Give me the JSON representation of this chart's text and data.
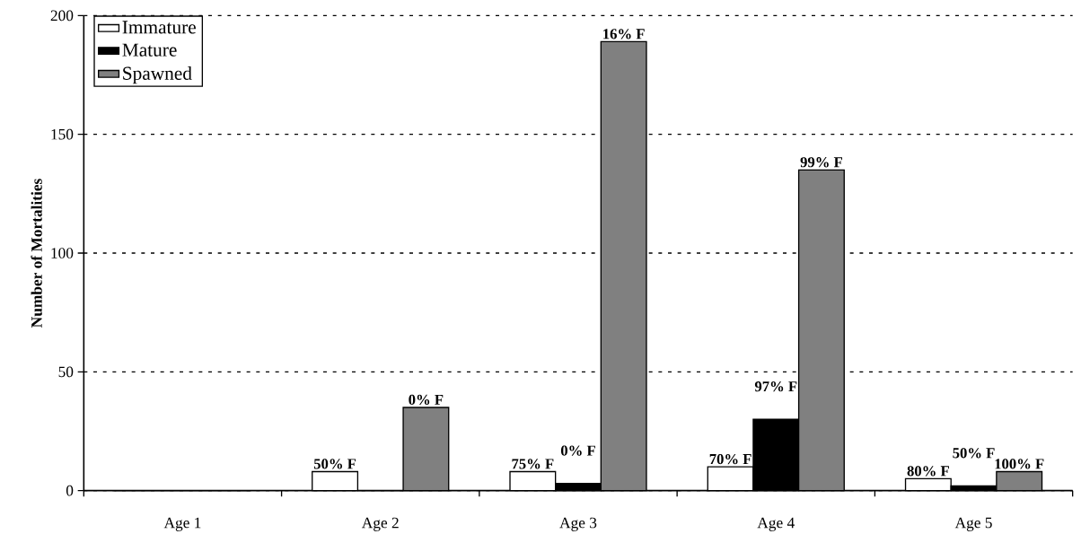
{
  "chart_data": {
    "type": "bar",
    "ylabel": "Number of Mortalities",
    "categories": [
      "Age 1",
      "Age 2",
      "Age 3",
      "Age 4",
      "Age 5"
    ],
    "series": [
      {
        "name": "Immature",
        "color": "#ffffff",
        "values": [
          0,
          8,
          8,
          10,
          5
        ]
      },
      {
        "name": "Mature",
        "color": "#000000",
        "values": [
          0,
          0,
          3,
          30,
          2
        ]
      },
      {
        "name": "Spawned",
        "color": "#808080",
        "values": [
          0,
          35,
          189,
          135,
          8
        ]
      }
    ],
    "annotations": [
      "50% F",
      "0% F",
      "75% F",
      "0% F",
      "16% F",
      "70% F",
      "97% F",
      "99% F",
      "80% F",
      "50% F",
      "100% F"
    ],
    "ylim": [
      0,
      200
    ],
    "yticks": [
      0,
      50,
      100,
      150,
      200
    ],
    "grid": "y",
    "legend": "top left"
  }
}
